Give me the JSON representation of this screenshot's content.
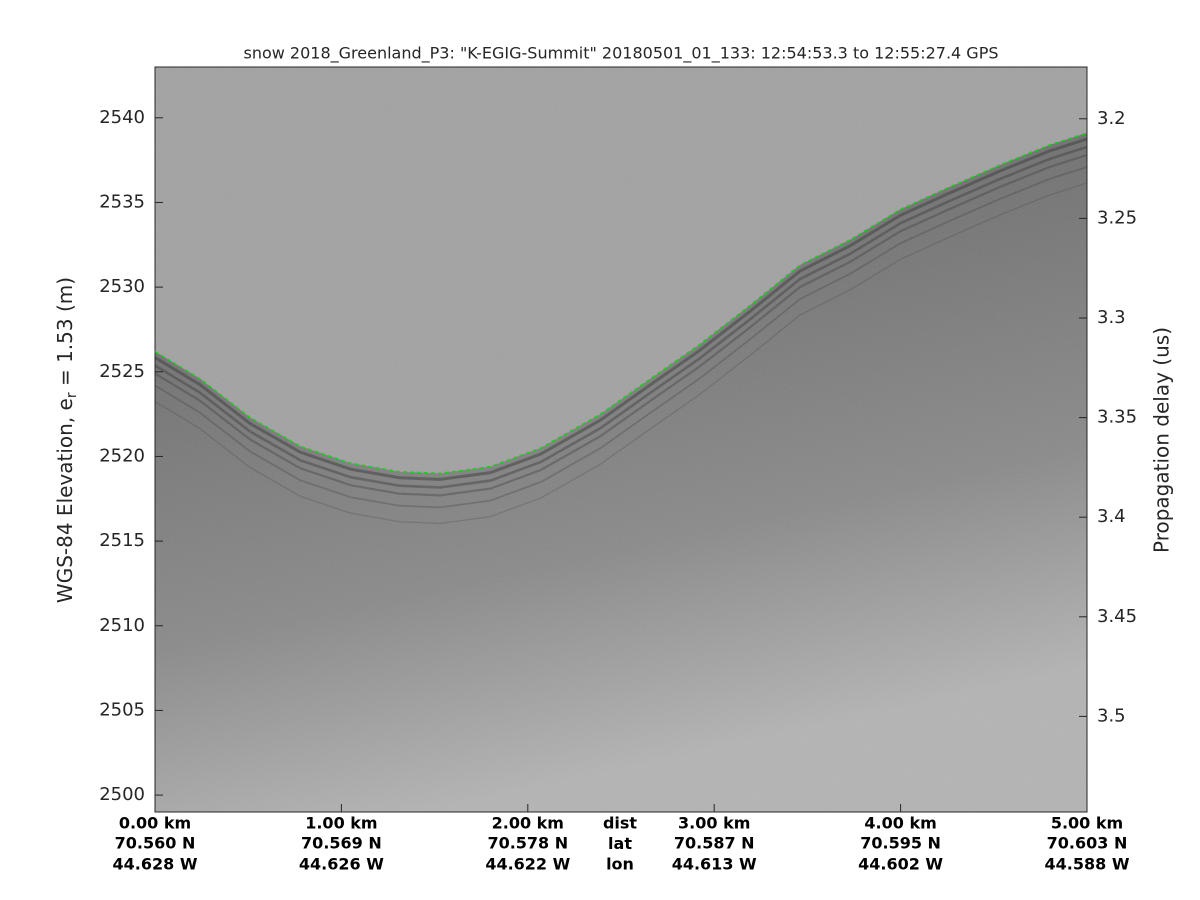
{
  "chart_data": {
    "type": "line",
    "title": "snow 2018_Greenland_P3: \"K-EGIG-Summit\"  20180501_01_133: 12:54:53.3 to 12:55:27.4 GPS",
    "ylabel": [
      "WGS-84 Elevation, e",
      "r",
      " = 1.53 (m)"
    ],
    "y2label": "Propagation delay (us)",
    "x": [
      0,
      0.24,
      0.51,
      0.78,
      1.05,
      1.31,
      1.53,
      1.8,
      2.07,
      2.39,
      2.66,
      2.92,
      3.19,
      3.46,
      3.73,
      4.0,
      4.26,
      4.53,
      4.8,
      5.0
    ],
    "series": [
      {
        "color": "#22cc22",
        "values": [
          2526.2,
          2524.6,
          2522.3,
          2520.6,
          2519.6,
          2519.1,
          2519.0,
          2519.4,
          2520.5,
          2522.5,
          2524.6,
          2526.6,
          2528.9,
          2531.3,
          2532.8,
          2534.6,
          2535.9,
          2537.2,
          2538.4,
          2539.1
        ]
      }
    ],
    "xlim": [
      0,
      5
    ],
    "xticks": [
      {
        "value": 0,
        "label": "0.00 km"
      },
      {
        "value": 1,
        "label": "1.00 km"
      },
      {
        "value": 2,
        "label": "2.00 km"
      },
      {
        "value": 3,
        "label": "3.00 km"
      },
      {
        "value": 4,
        "label": "4.00 km"
      },
      {
        "value": 5,
        "label": "5.00 km"
      }
    ],
    "lat_labels": [
      "70.560 N",
      "70.569 N",
      "70.578 N",
      "70.587 N",
      "70.595 N",
      "70.603 N"
    ],
    "lon_labels": [
      "44.628 W",
      "44.626 W",
      "44.622 W",
      "44.613 W",
      "44.602 W",
      "44.588 W"
    ],
    "row_labels": [
      "dist",
      "lat",
      "lon"
    ],
    "ylim": [
      2499,
      2543
    ],
    "yticks": [
      2500,
      2505,
      2510,
      2515,
      2520,
      2525,
      2530,
      2535,
      2540
    ],
    "y2lim": [
      3.548,
      3.174
    ],
    "y2ticks": [
      3.2,
      3.25,
      3.3,
      3.35,
      3.4,
      3.45,
      3.5
    ]
  }
}
